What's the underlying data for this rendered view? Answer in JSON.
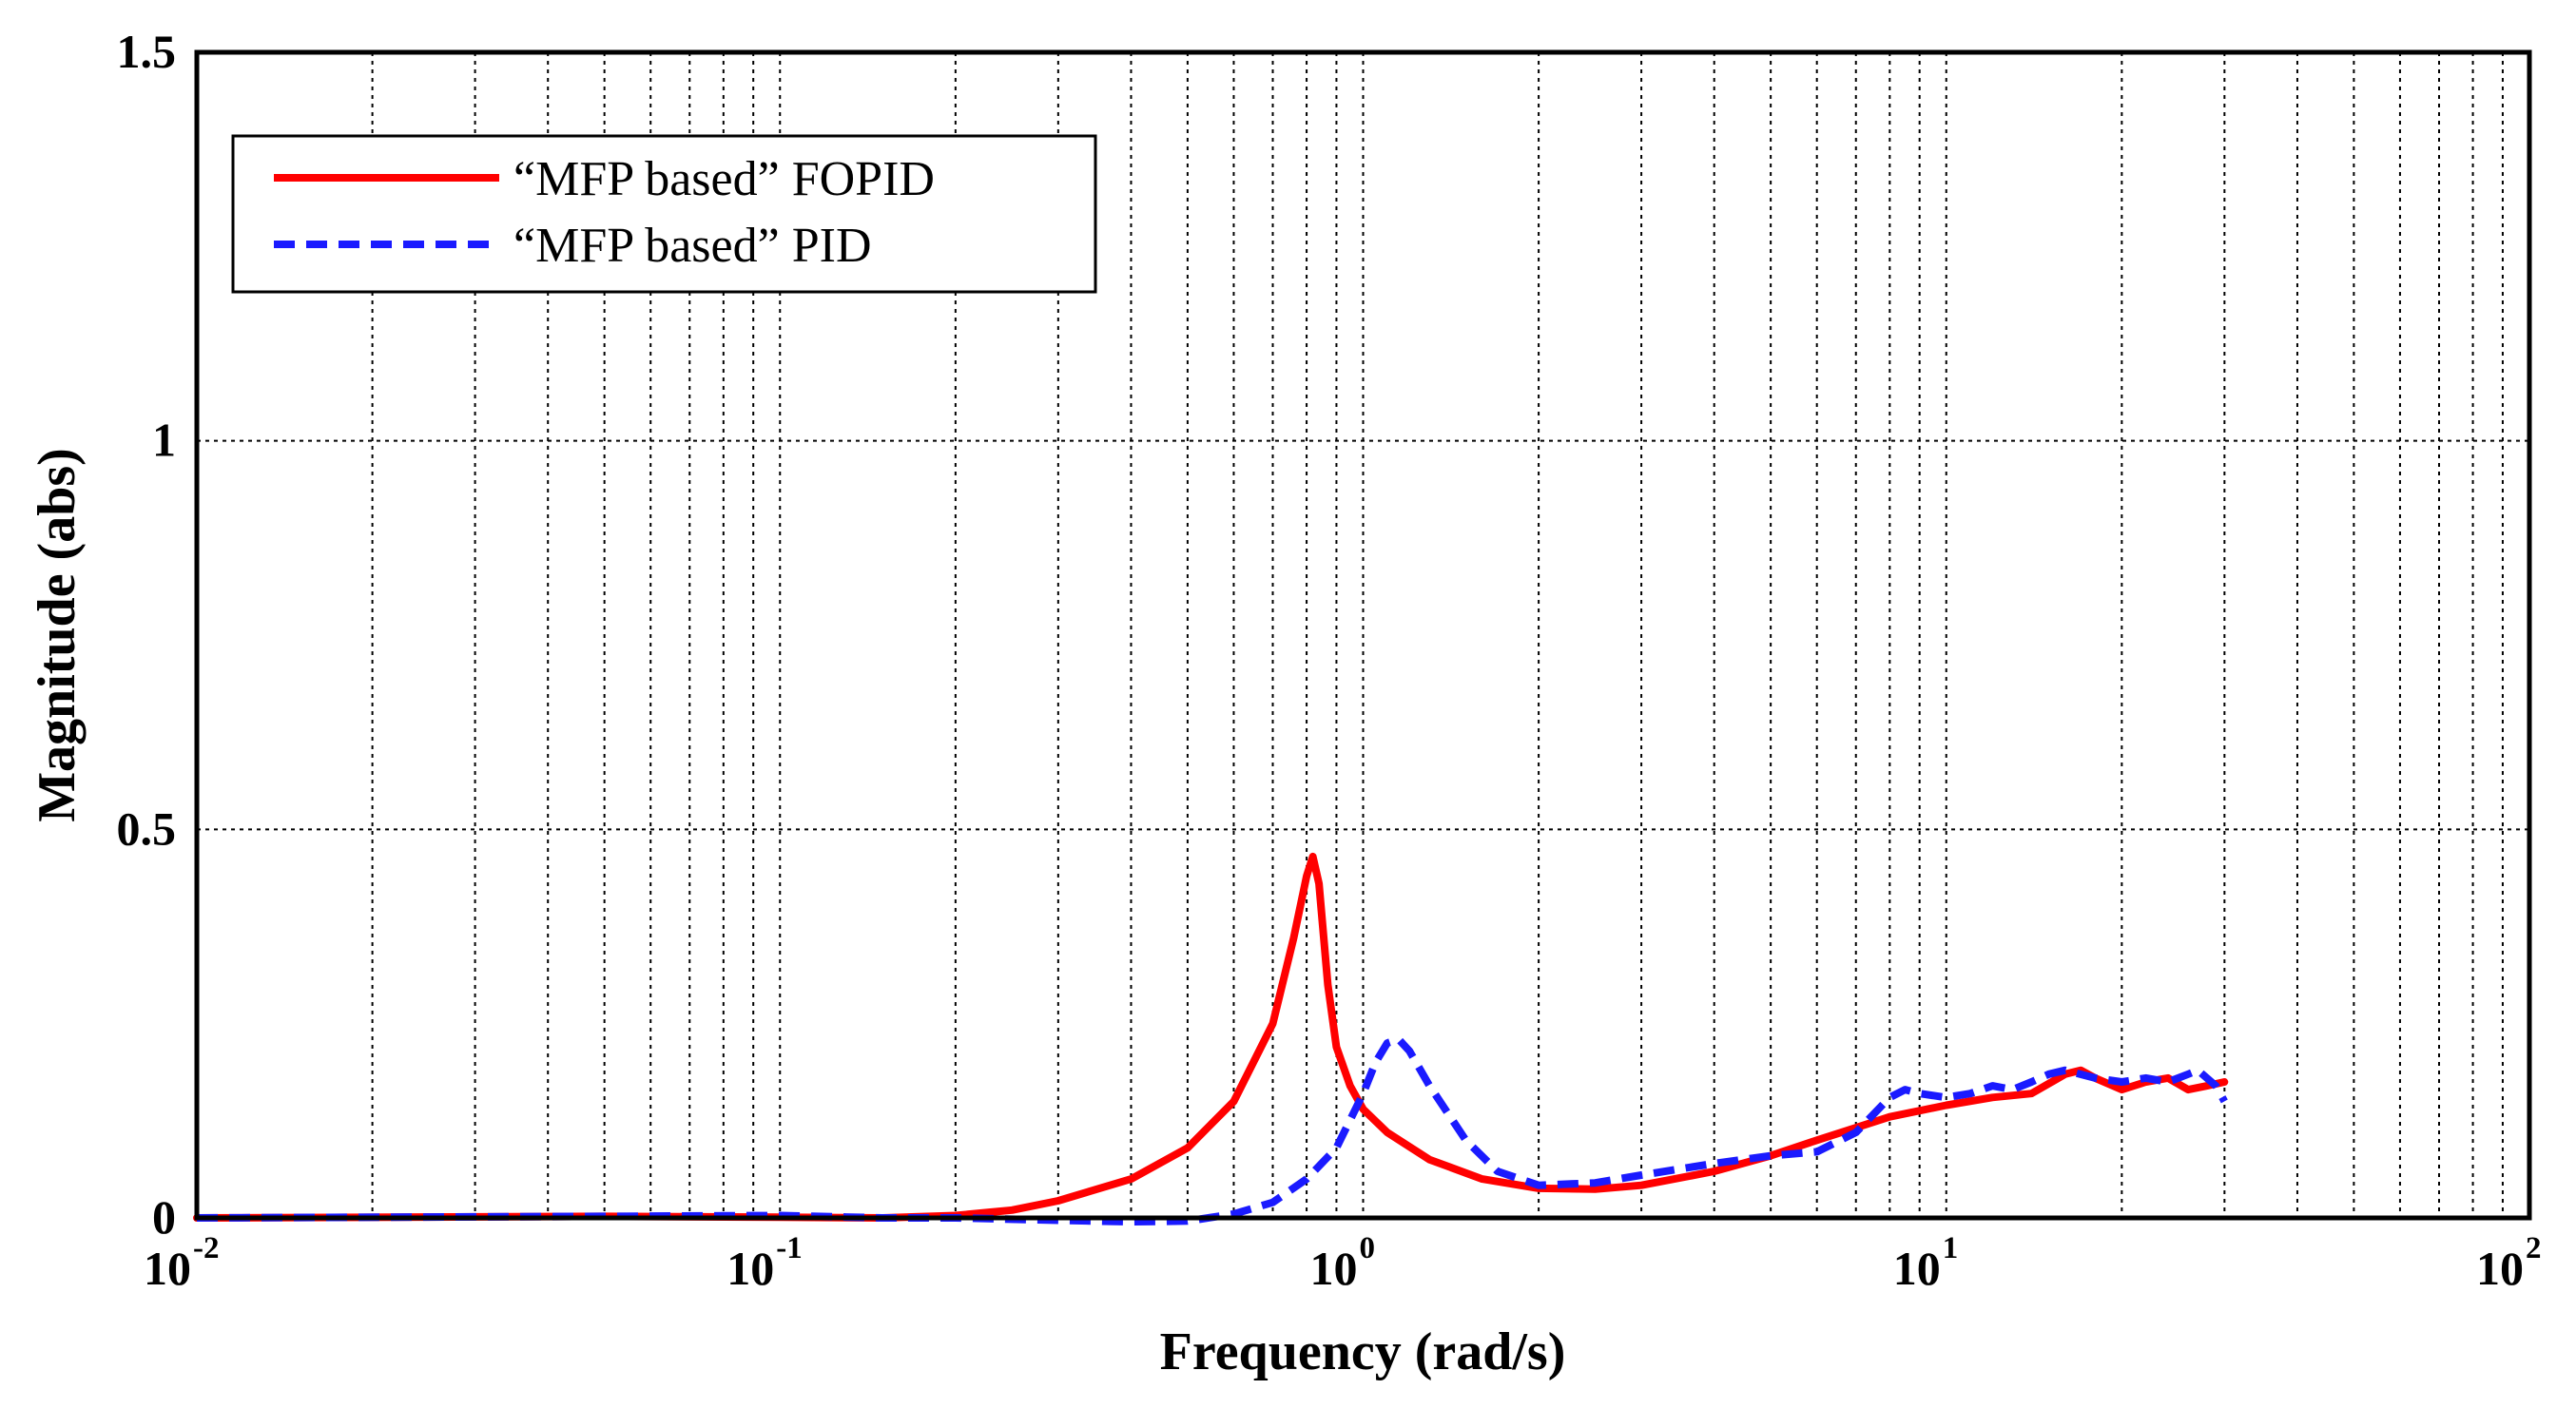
{
  "chart_data": {
    "type": "line",
    "title": "",
    "xlabel": "Frequency (rad/s)",
    "ylabel": "Magnitude (abs)",
    "xscale": "log",
    "xlim": [
      0.01,
      100
    ],
    "ylim": [
      0,
      1.5
    ],
    "grid": true,
    "legend_position": "top-left",
    "x_ticks": [
      {
        "base": "10",
        "exp": "-2",
        "value": 0.01
      },
      {
        "base": "10",
        "exp": "-1",
        "value": 0.1
      },
      {
        "base": "10",
        "exp": "0",
        "value": 1
      },
      {
        "base": "10",
        "exp": "1",
        "value": 10
      },
      {
        "base": "10",
        "exp": "2",
        "value": 100
      }
    ],
    "y_ticks": [
      {
        "label": "0",
        "value": 0
      },
      {
        "label": "0.5",
        "value": 0.5
      },
      {
        "label": "1",
        "value": 1
      },
      {
        "label": "1.5",
        "value": 1.5
      }
    ],
    "series": [
      {
        "name": "“MFP based” FOPID",
        "color": "#ff0000",
        "style": "solid",
        "points": [
          [
            0.01,
            0.0
          ],
          [
            0.05,
            0.002
          ],
          [
            0.1,
            0.001
          ],
          [
            0.15,
            0.0
          ],
          [
            0.2,
            0.003
          ],
          [
            0.25,
            0.01
          ],
          [
            0.3,
            0.022
          ],
          [
            0.4,
            0.05
          ],
          [
            0.5,
            0.09
          ],
          [
            0.6,
            0.15
          ],
          [
            0.7,
            0.25
          ],
          [
            0.76,
            0.36
          ],
          [
            0.8,
            0.44
          ],
          [
            0.82,
            0.465
          ],
          [
            0.84,
            0.43
          ],
          [
            0.87,
            0.3
          ],
          [
            0.9,
            0.22
          ],
          [
            0.95,
            0.17
          ],
          [
            1.0,
            0.14
          ],
          [
            1.1,
            0.11
          ],
          [
            1.3,
            0.075
          ],
          [
            1.6,
            0.05
          ],
          [
            2.0,
            0.038
          ],
          [
            2.5,
            0.037
          ],
          [
            3.0,
            0.042
          ],
          [
            4.0,
            0.06
          ],
          [
            5.0,
            0.08
          ],
          [
            6.0,
            0.1
          ],
          [
            8.0,
            0.13
          ],
          [
            10.0,
            0.145
          ],
          [
            12.0,
            0.155
          ],
          [
            14.0,
            0.16
          ],
          [
            16.0,
            0.185
          ],
          [
            17.0,
            0.19
          ],
          [
            18.0,
            0.18
          ],
          [
            20.0,
            0.165
          ],
          [
            22.0,
            0.175
          ],
          [
            24.0,
            0.18
          ],
          [
            26.0,
            0.165
          ],
          [
            28.0,
            0.17
          ],
          [
            30.0,
            0.175
          ]
        ]
      },
      {
        "name": "“MFP based” PID",
        "color": "#1a1aff",
        "style": "dashed",
        "points": [
          [
            0.01,
            0.0
          ],
          [
            0.05,
            0.002
          ],
          [
            0.1,
            0.003
          ],
          [
            0.15,
            0.0
          ],
          [
            0.2,
            0.0
          ],
          [
            0.3,
            -0.003
          ],
          [
            0.4,
            -0.005
          ],
          [
            0.5,
            -0.004
          ],
          [
            0.6,
            0.005
          ],
          [
            0.7,
            0.02
          ],
          [
            0.8,
            0.05
          ],
          [
            0.9,
            0.09
          ],
          [
            1.0,
            0.16
          ],
          [
            1.05,
            0.2
          ],
          [
            1.1,
            0.225
          ],
          [
            1.15,
            0.23
          ],
          [
            1.2,
            0.215
          ],
          [
            1.3,
            0.17
          ],
          [
            1.5,
            0.1
          ],
          [
            1.7,
            0.06
          ],
          [
            2.0,
            0.042
          ],
          [
            2.5,
            0.045
          ],
          [
            3.0,
            0.055
          ],
          [
            4.0,
            0.07
          ],
          [
            5.0,
            0.08
          ],
          [
            6.0,
            0.085
          ],
          [
            7.0,
            0.11
          ],
          [
            8.0,
            0.155
          ],
          [
            8.5,
            0.165
          ],
          [
            9.0,
            0.16
          ],
          [
            10.0,
            0.155
          ],
          [
            11.0,
            0.16
          ],
          [
            12.0,
            0.17
          ],
          [
            13.0,
            0.165
          ],
          [
            14.0,
            0.175
          ],
          [
            15.0,
            0.185
          ],
          [
            16.0,
            0.19
          ],
          [
            18.0,
            0.18
          ],
          [
            20.0,
            0.175
          ],
          [
            22.0,
            0.18
          ],
          [
            24.0,
            0.175
          ],
          [
            26.0,
            0.185
          ],
          [
            27.0,
            0.19
          ],
          [
            29.0,
            0.17
          ],
          [
            30.0,
            0.15
          ]
        ]
      }
    ]
  }
}
